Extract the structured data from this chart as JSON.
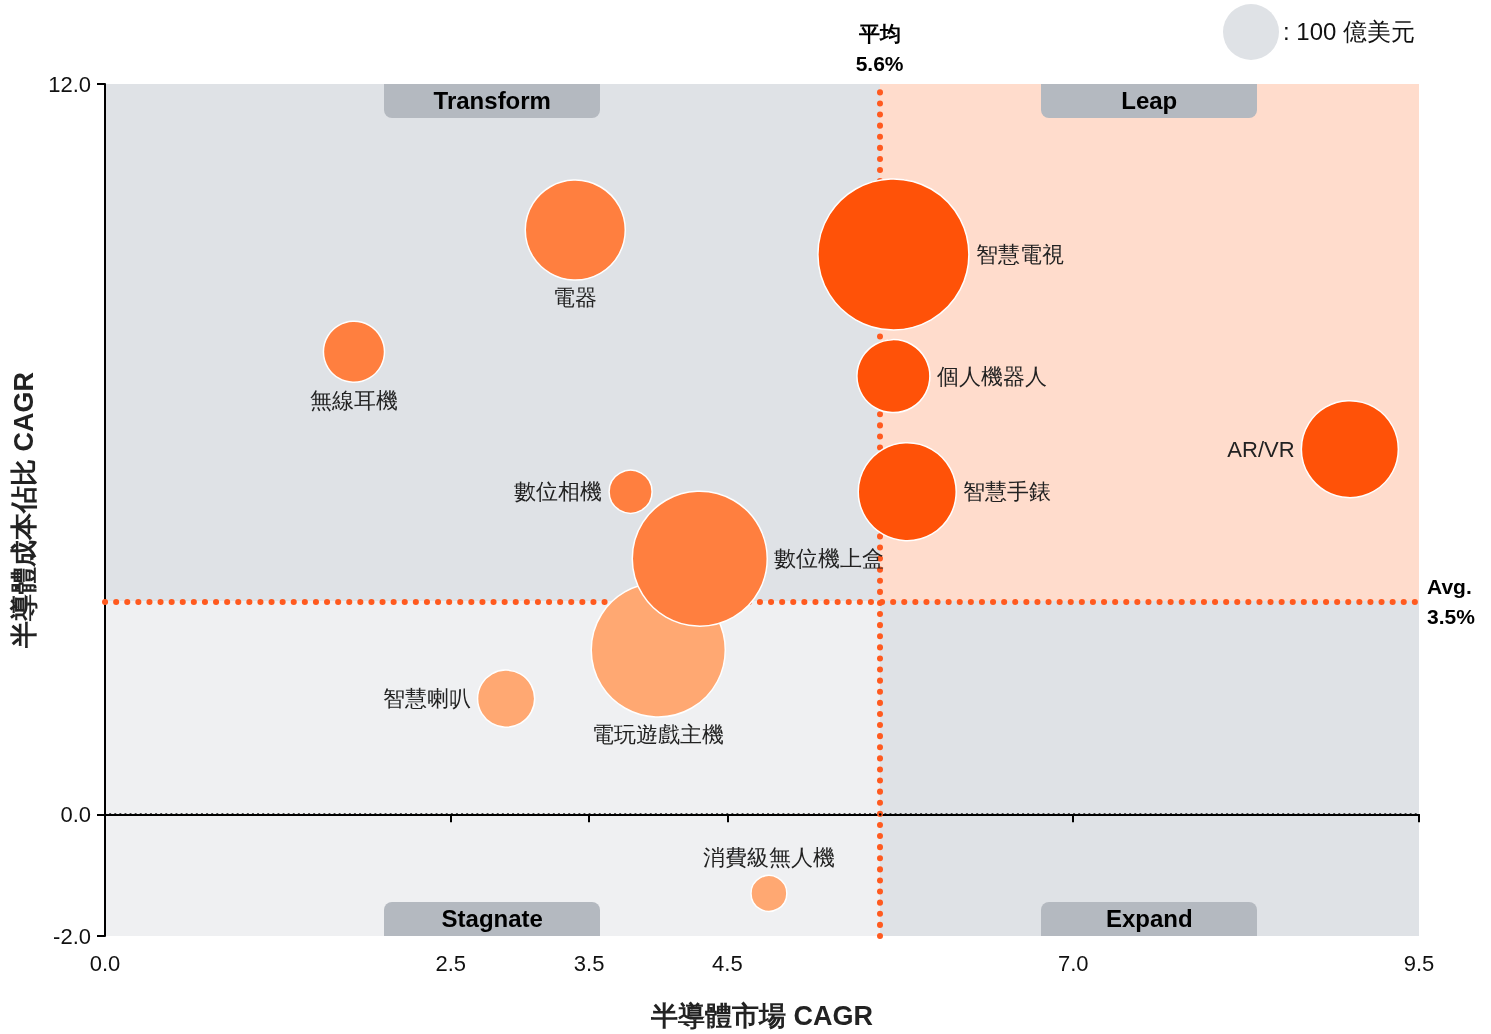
{
  "chart_data": {
    "type": "bubble",
    "xlabel": "半導體市場 CAGR",
    "ylabel": "半導體成本佔比 CAGR",
    "xlim": [
      0,
      9.5
    ],
    "xticks": [
      {
        "value": 0,
        "label": "0.0"
      },
      2.5,
      3.5,
      4.5,
      {
        "value": 7,
        "label": "7.0"
      },
      9.5
    ],
    "ylim": [
      -2,
      12
    ],
    "yticks": [
      {
        "value": -2,
        "label": "-2.0"
      },
      {
        "value": 0,
        "label": "0.0"
      },
      {
        "value": 12,
        "label": "12.0"
      }
    ],
    "grid": false,
    "legend": false,
    "marker": "circle",
    "size_legend": [
      {
        "value": 100,
        "label": ": 100 億美元"
      }
    ],
    "annotations": [
      "Transform",
      "Leap",
      "Stagnate",
      "Expand"
    ],
    "ref_lines": [
      {
        "axis": "x",
        "value": 5.6,
        "label": "平均\n5.6%",
        "color": "#ff5a1f",
        "line_style": "dotted"
      },
      {
        "axis": "y",
        "value": 3.5,
        "label": "Avg.\n3.5%",
        "color": "#ff5a1f",
        "line_style": "dotted"
      },
      {
        "axis": "y",
        "value": 0,
        "color": "#000000",
        "line_style": "dotted"
      }
    ],
    "series": [
      {
        "name": "電器",
        "color": "#ff7f3f",
        "x": [
          3.4
        ],
        "values": [
          9.6
        ],
        "sizes": [
          319
        ]
      },
      {
        "name": "無線耳機",
        "color": "#ff7f3f",
        "x": [
          1.8
        ],
        "values": [
          7.6
        ],
        "sizes": [
          119
        ]
      },
      {
        "name": "數位相機",
        "color": "#ff7f3f",
        "x": [
          3.8
        ],
        "values": [
          5.3
        ],
        "sizes": [
          59
        ]
      },
      {
        "name": "電玩遊戲主機",
        "color": "#ffa872",
        "x": [
          4.0
        ],
        "values": [
          2.7
        ],
        "sizes": [
          573
        ]
      },
      {
        "name": "數位機上盒",
        "color": "#ff7f3f",
        "x": [
          4.3
        ],
        "values": [
          4.2
        ],
        "sizes": [
          581
        ]
      },
      {
        "name": "智慧喇叭",
        "color": "#ffa872",
        "x": [
          2.9
        ],
        "values": [
          1.9
        ],
        "sizes": [
          104
        ]
      },
      {
        "name": "消費級無人機",
        "color": "#ffa872",
        "x": [
          4.8
        ],
        "values": [
          -1.3
        ],
        "sizes": [
          41
        ]
      },
      {
        "name": "智慧電視",
        "color": "#ff5208",
        "x": [
          5.7
        ],
        "values": [
          9.2
        ],
        "sizes": [
          727
        ]
      },
      {
        "name": "個人機器人",
        "color": "#ff5208",
        "x": [
          5.7
        ],
        "values": [
          7.2
        ],
        "sizes": [
          170
        ]
      },
      {
        "name": "智慧手錶",
        "color": "#ff5208",
        "x": [
          5.8
        ],
        "values": [
          5.3
        ],
        "sizes": [
          306
        ]
      },
      {
        "name": "AR/VR",
        "color": "#ff5208",
        "x": [
          9.0
        ],
        "values": [
          6.0
        ],
        "sizes": [
          300
        ]
      }
    ]
  }
}
